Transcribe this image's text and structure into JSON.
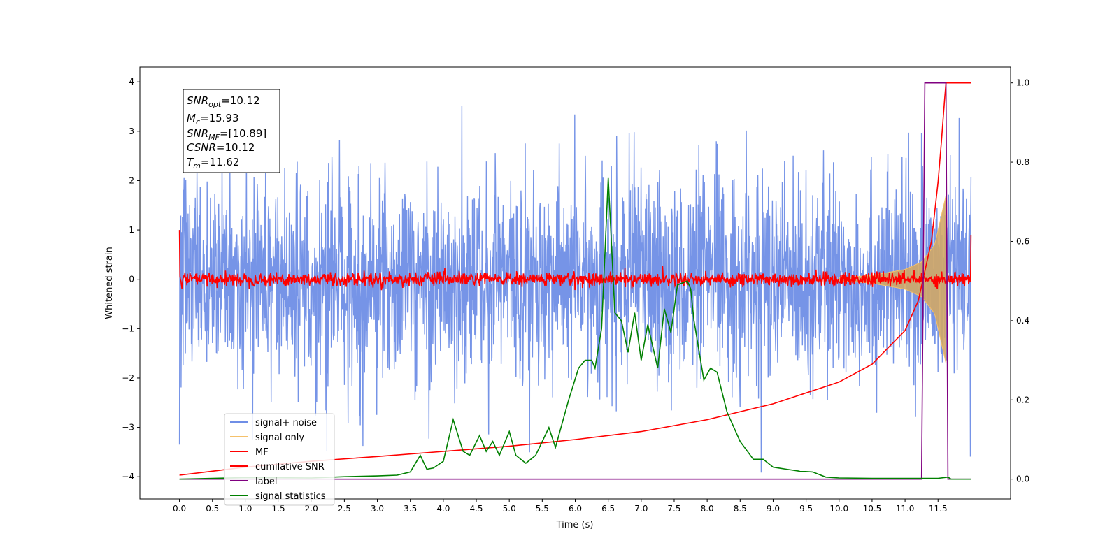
{
  "chart_data": {
    "type": "line",
    "xlabel": "Time (s)",
    "ylabel": "Whitened strain",
    "xlim": [
      -0.6,
      12.6
    ],
    "ylim": [
      -4.45,
      4.3
    ],
    "y2lim": [
      -0.05,
      1.04
    ],
    "x_ticks": [
      "0.0",
      "0.5",
      "1.0",
      "1.5",
      "2.0",
      "2.5",
      "3.0",
      "3.5",
      "4.0",
      "4.5",
      "5.0",
      "5.5",
      "6.0",
      "6.5",
      "7.0",
      "7.5",
      "8.0",
      "8.5",
      "9.0",
      "9.5",
      "10.0",
      "10.5",
      "11.0",
      "11.5"
    ],
    "y_ticks": [
      "4",
      "3",
      "2",
      "1",
      "0",
      "−1",
      "−2",
      "−3",
      "−4"
    ],
    "y2_ticks": [
      "1.0",
      "0.8",
      "0.6",
      "0.4",
      "0.2",
      "0.0"
    ],
    "legend_position": "lower-left",
    "annotation": {
      "lines": [
        {
          "name": "SNR",
          "sub": "opt",
          "value": "=10.12"
        },
        {
          "name": "M",
          "sub": "c",
          "value": "=15.93"
        },
        {
          "name": "SNR",
          "sub": "MF",
          "value": "=[10.89]"
        },
        {
          "name": "CSNR",
          "sub": "",
          "value": "=10.12"
        },
        {
          "name": "T",
          "sub": "m",
          "value": "=11.62"
        }
      ]
    },
    "series": [
      {
        "name": "signal+ noise",
        "color": "#6f8ee6",
        "axis": "left",
        "description": "whitened noise, envelope about ±2.2 with peaks to ±3.5"
      },
      {
        "name": "signal only",
        "color": "#f5c16b",
        "axis": "left",
        "envelope": {
          "x": [
            10.0,
            10.5,
            11.0,
            11.25,
            11.45,
            11.62
          ],
          "amp": [
            0.03,
            0.08,
            0.2,
            0.35,
            0.7,
            1.7
          ]
        }
      },
      {
        "name": "MF",
        "color": "#ff0000",
        "axis": "left",
        "description": "matched-filter output, near 0 with amplitude about 0.15; 1.0 at start and 0.9 at end"
      },
      {
        "name": "cumilative SNR",
        "color": "#ff0000",
        "axis": "right",
        "x": [
          0.0,
          0.5,
          1.0,
          2.0,
          3.0,
          4.0,
          5.0,
          6.0,
          7.0,
          8.0,
          9.0,
          10.0,
          10.5,
          11.0,
          11.2,
          11.4,
          11.5,
          11.55,
          11.6,
          11.62,
          12.0
        ],
        "values": [
          0.01,
          0.02,
          0.03,
          0.045,
          0.057,
          0.07,
          0.083,
          0.1,
          0.12,
          0.15,
          0.19,
          0.245,
          0.29,
          0.375,
          0.45,
          0.6,
          0.75,
          0.85,
          0.96,
          1.0,
          1.0
        ]
      },
      {
        "name": "label",
        "color": "#800080",
        "axis": "right",
        "x": [
          0.0,
          11.25,
          11.3,
          11.62,
          11.65,
          12.0
        ],
        "values": [
          0.0,
          0.0,
          1.0,
          1.0,
          0.0,
          0.0
        ]
      },
      {
        "name": "signal statistics",
        "color": "#008000",
        "axis": "right",
        "x": [
          0.0,
          1.0,
          2.0,
          2.5,
          3.0,
          3.3,
          3.5,
          3.65,
          3.75,
          3.85,
          4.0,
          4.15,
          4.3,
          4.4,
          4.55,
          4.65,
          4.75,
          4.85,
          5.0,
          5.1,
          5.25,
          5.4,
          5.6,
          5.7,
          5.9,
          6.05,
          6.15,
          6.25,
          6.3,
          6.4,
          6.5,
          6.6,
          6.7,
          6.8,
          6.9,
          7.0,
          7.1,
          7.25,
          7.35,
          7.45,
          7.55,
          7.7,
          7.75,
          7.8,
          7.95,
          8.05,
          8.15,
          8.3,
          8.5,
          8.7,
          8.85,
          9.0,
          9.2,
          9.4,
          9.6,
          9.8,
          10.0,
          10.5,
          11.0,
          11.5,
          11.65,
          11.7,
          12.0
        ],
        "values": [
          0.0,
          0.004,
          0.003,
          0.006,
          0.008,
          0.01,
          0.018,
          0.06,
          0.025,
          0.028,
          0.045,
          0.15,
          0.07,
          0.06,
          0.11,
          0.07,
          0.095,
          0.06,
          0.12,
          0.06,
          0.04,
          0.06,
          0.13,
          0.08,
          0.2,
          0.28,
          0.3,
          0.3,
          0.28,
          0.38,
          0.76,
          0.42,
          0.4,
          0.32,
          0.42,
          0.3,
          0.39,
          0.28,
          0.43,
          0.37,
          0.49,
          0.5,
          0.48,
          0.4,
          0.25,
          0.28,
          0.27,
          0.17,
          0.095,
          0.05,
          0.05,
          0.03,
          0.025,
          0.02,
          0.018,
          0.005,
          0.003,
          0.002,
          0.002,
          0.002,
          0.005,
          0.0,
          0.0
        ]
      }
    ]
  }
}
